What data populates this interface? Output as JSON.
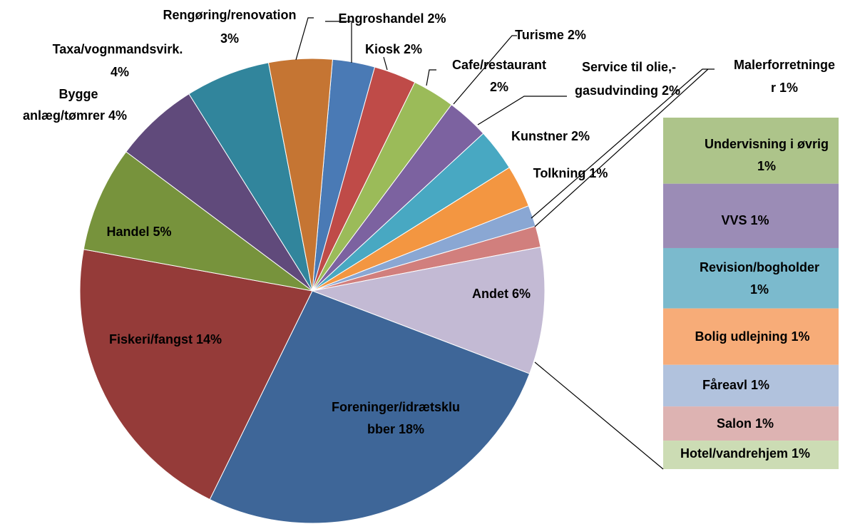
{
  "chart_data": {
    "type": "bar-of-pie",
    "pie": {
      "labels": [
        [
          "Engroshandel 2%"
        ],
        [
          "Kiosk 2%"
        ],
        [
          "Cafe/restaurant",
          "2%"
        ],
        [
          "Turisme 2%"
        ],
        [
          "Service til olie,-",
          "gasudvinding 2%"
        ],
        [
          "Kunstner 2%"
        ],
        [
          "Tolkning 1%"
        ],
        [
          "Malerforretninge",
          "r 1%"
        ],
        [
          "Andet 6%"
        ],
        [
          "Foreninger/idrætsklu",
          "bber 18%"
        ],
        [
          "Fiskeri/fangst 14%"
        ],
        [
          "Handel 5%"
        ],
        [
          "Bygge",
          "anlæg/tømrer 4%"
        ],
        [
          "Taxa/vognmandsvirk.",
          "4%"
        ],
        [
          "Rengøring/renovation",
          "3%"
        ]
      ],
      "values": [
        2,
        2,
        2,
        2,
        2,
        2,
        1,
        1,
        6,
        18,
        14,
        5,
        4,
        4,
        3
      ],
      "colors": [
        "#4a7ab5",
        "#bf4b48",
        "#9bbb59",
        "#7c62a0",
        "#48a8c2",
        "#f39641",
        "#8aa7d3",
        "#d17f7d",
        "#c3bad4",
        "#3e6698",
        "#953b39",
        "#77933c",
        "#604a7b",
        "#31859c",
        "#c57533"
      ]
    },
    "bar": {
      "labels": [
        [
          "Undervisning i øvrig",
          "1%"
        ],
        [
          "VVS 1%"
        ],
        [
          "Revision/bogholder",
          "1%"
        ],
        [
          "Bolig udlejning 1%"
        ],
        [
          "Fåreavl 1%"
        ],
        [
          "Salon 1%"
        ],
        [
          "Hotel/vandrehjem 1%"
        ]
      ],
      "values": [
        1.16,
        1.13,
        1.06,
        0.99,
        0.73,
        0.6,
        0.5
      ],
      "colors": [
        "#adc48a",
        "#9b8cb6",
        "#7bbacd",
        "#f7ac78",
        "#b1c2dd",
        "#ddb3b2",
        "#ccdcb4"
      ]
    }
  }
}
